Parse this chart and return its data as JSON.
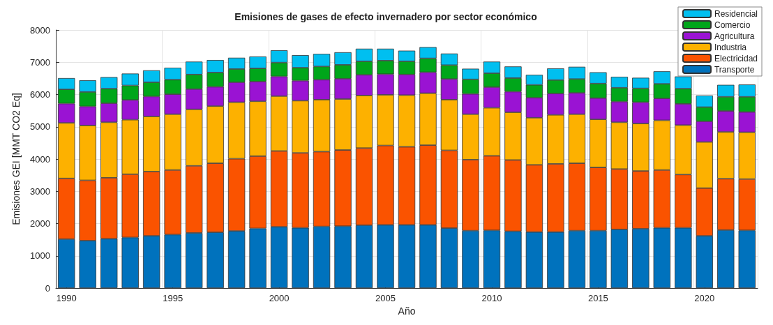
{
  "chart_data": {
    "type": "bar",
    "stacked": true,
    "title": "Emisiones de gases de efecto invernadero por sector económico",
    "xlabel": "Año",
    "ylabel": "Emisiones GEI [MMT CO2 Eq]",
    "categories": [
      "1990",
      null,
      null,
      null,
      null,
      "1995",
      null,
      null,
      null,
      null,
      "2000",
      null,
      null,
      null,
      null,
      "2005",
      null,
      null,
      null,
      null,
      "2010",
      null,
      null,
      null,
      null,
      "2015",
      null,
      null,
      null,
      null,
      "2020",
      null,
      null
    ],
    "ylim": [
      0,
      8000
    ],
    "yticks": [
      0,
      1000,
      2000,
      3000,
      4000,
      5000,
      6000,
      7000,
      8000
    ],
    "grid": true,
    "legend": "top right",
    "series": [
      {
        "name": "Transporte",
        "color": "#0072bd",
        "values": [
          1520,
          1470,
          1530,
          1570,
          1620,
          1660,
          1710,
          1730,
          1770,
          1850,
          1900,
          1870,
          1910,
          1920,
          1950,
          1960,
          1960,
          1960,
          1860,
          1780,
          1790,
          1760,
          1740,
          1740,
          1780,
          1780,
          1820,
          1840,
          1870,
          1870,
          1620,
          1800,
          1790
        ]
      },
      {
        "name": "Electricidad",
        "color": "#fa5300",
        "values": [
          1880,
          1870,
          1890,
          1960,
          1990,
          2000,
          2080,
          2140,
          2240,
          2240,
          2350,
          2320,
          2320,
          2360,
          2390,
          2460,
          2420,
          2470,
          2410,
          2200,
          2310,
          2210,
          2080,
          2110,
          2090,
          1960,
          1870,
          1790,
          1790,
          1650,
          1480,
          1590,
          1590
        ]
      },
      {
        "name": "Industria",
        "color": "#fdb100",
        "values": [
          1720,
          1700,
          1720,
          1690,
          1710,
          1730,
          1750,
          1770,
          1750,
          1700,
          1700,
          1620,
          1610,
          1580,
          1630,
          1570,
          1600,
          1610,
          1570,
          1410,
          1490,
          1480,
          1460,
          1520,
          1520,
          1490,
          1450,
          1470,
          1540,
          1530,
          1430,
          1450,
          1450
        ]
      },
      {
        "name": "Agricultura",
        "color": "#9a13d3",
        "values": [
          600,
          590,
          590,
          610,
          620,
          620,
          630,
          600,
          620,
          610,
          610,
          620,
          620,
          630,
          640,
          640,
          640,
          650,
          640,
          630,
          640,
          640,
          620,
          660,
          660,
          660,
          640,
          660,
          680,
          660,
          640,
          650,
          630
        ]
      },
      {
        "name": "Comercio",
        "color": "#00a61a",
        "values": [
          440,
          450,
          450,
          450,
          440,
          450,
          450,
          440,
          410,
          410,
          430,
          400,
          410,
          430,
          420,
          420,
          410,
          430,
          430,
          450,
          430,
          420,
          400,
          420,
          430,
          450,
          430,
          430,
          450,
          470,
          440,
          440,
          470
        ]
      },
      {
        "name": "Residencial",
        "color": "#00bff0",
        "values": [
          350,
          360,
          360,
          370,
          370,
          370,
          400,
          390,
          350,
          370,
          380,
          390,
          390,
          390,
          390,
          370,
          330,
          350,
          360,
          330,
          360,
          360,
          310,
          360,
          380,
          350,
          340,
          330,
          390,
          380,
          360,
          370,
          380
        ]
      }
    ]
  }
}
